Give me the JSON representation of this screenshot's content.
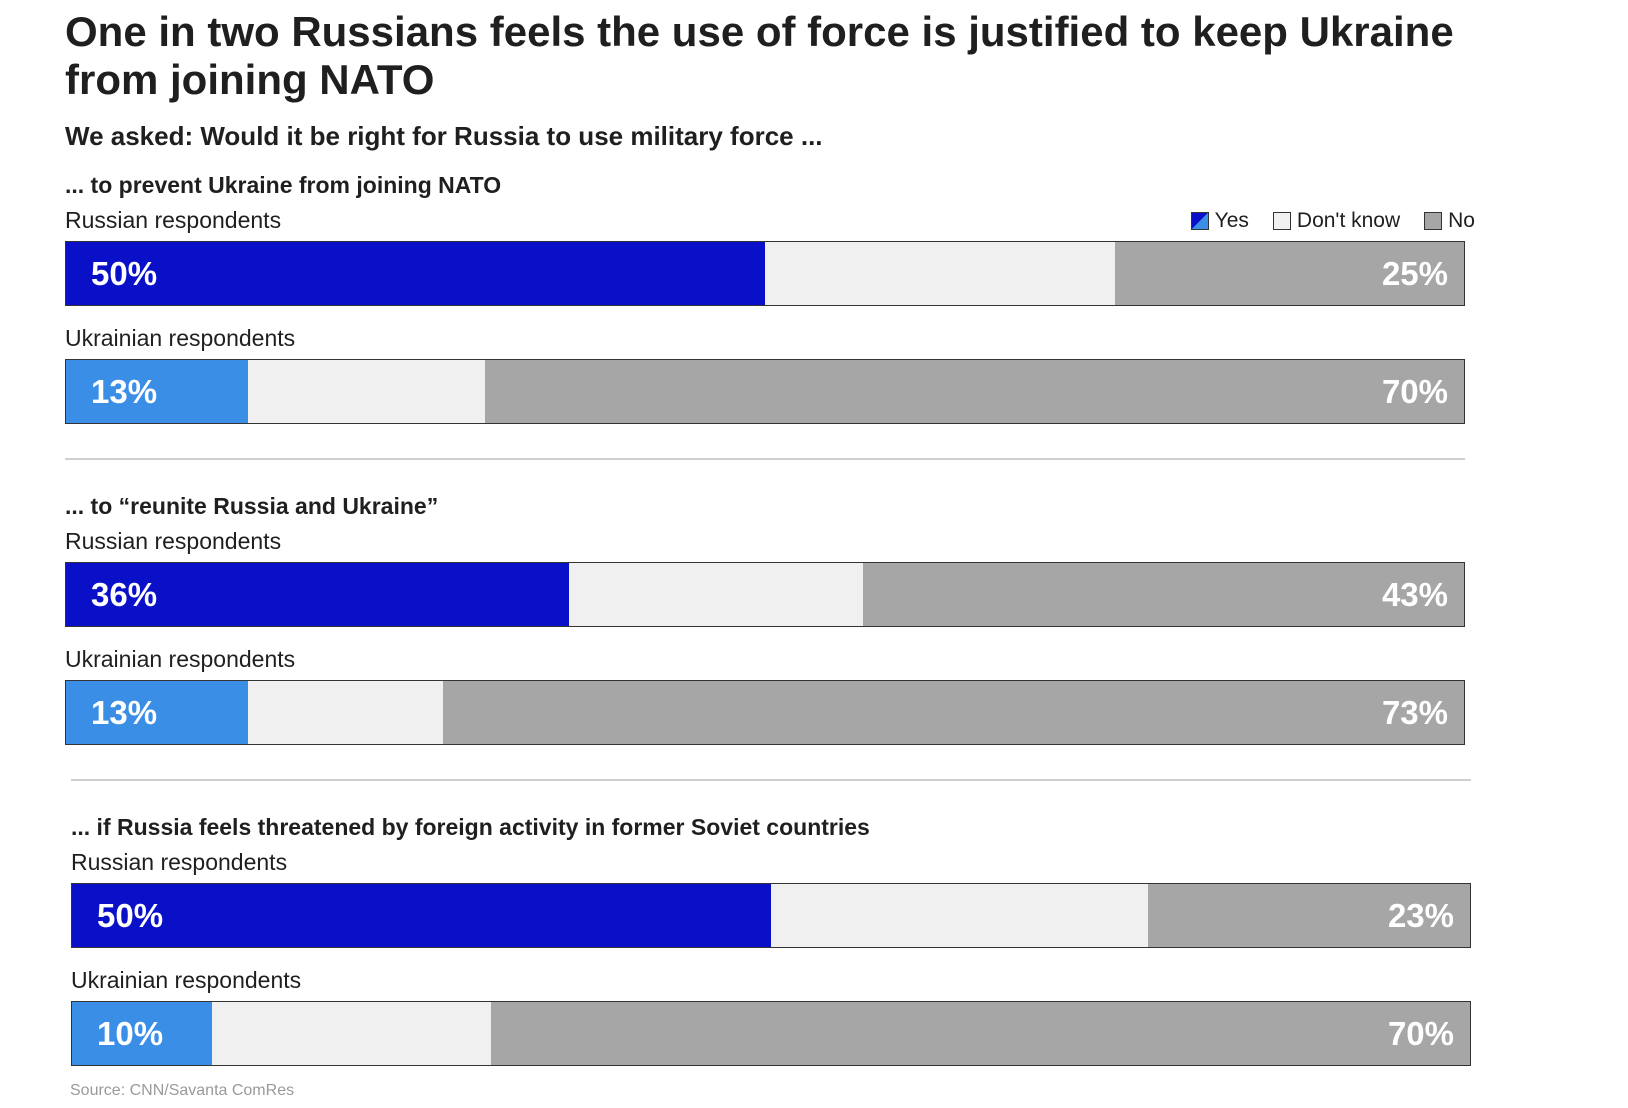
{
  "header": {
    "title": "One in two Russians feels the use of force is justified to keep Ukraine from joining NATO",
    "subtitle": "We asked: Would it be right for Russia to use military force ..."
  },
  "legend": {
    "items": [
      {
        "label": "Yes",
        "color": "#0a10c8"
      },
      {
        "label": "Don't know",
        "color": "#f0f0f0"
      },
      {
        "label": "No",
        "color": "#a6a6a6"
      }
    ]
  },
  "colors": {
    "russia_yes": "#0a10c8",
    "ukraine_yes": "#3a8ee6",
    "dont_know": "#f0f0f0",
    "no": "#a6a6a6"
  },
  "chart_data": {
    "type": "bar",
    "orientation": "horizontal",
    "stacked": true,
    "units": "percent",
    "groups": [
      {
        "heading": "... to prevent Ukraine from joining NATO",
        "rows": [
          {
            "label": "Russian respondents",
            "yes": 50,
            "dont_know": 25,
            "no": 25,
            "yes_label": "50%",
            "no_label": "25%"
          },
          {
            "label": "Ukrainian respondents",
            "yes": 13,
            "dont_know": 17,
            "no": 70,
            "yes_label": "13%",
            "no_label": "70%"
          }
        ]
      },
      {
        "heading": "... to “reunite Russia and Ukraine”",
        "rows": [
          {
            "label": "Russian respondents",
            "yes": 36,
            "dont_know": 21,
            "no": 43,
            "yes_label": "36%",
            "no_label": "43%"
          },
          {
            "label": "Ukrainian respondents",
            "yes": 13,
            "dont_know": 14,
            "no": 73,
            "yes_label": "13%",
            "no_label": "73%"
          }
        ]
      },
      {
        "heading": "... if Russia feels threatened by foreign activity in former Soviet countries",
        "rows": [
          {
            "label": "Russian respondents",
            "yes": 50,
            "dont_know": 27,
            "no": 23,
            "yes_label": "50%",
            "no_label": "23%"
          },
          {
            "label": "Ukrainian respondents",
            "yes": 10,
            "dont_know": 20,
            "no": 70,
            "yes_label": "10%",
            "no_label": "70%"
          }
        ]
      }
    ]
  },
  "footer": {
    "source": "Source: CNN/Savanta ComRes"
  }
}
